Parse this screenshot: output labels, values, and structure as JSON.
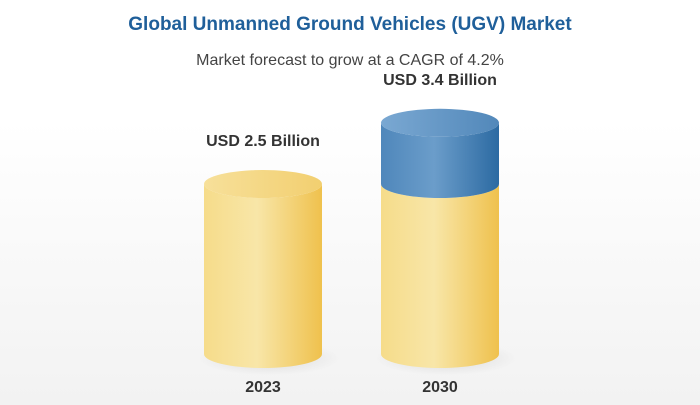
{
  "title": "Global Unmanned Ground Vehicles (UGV) Market",
  "subtitle": "Market forecast to grow at a CAGR of 4.2%",
  "colors": {
    "title": "#1f5f9a",
    "base_light": "#f8e6a6",
    "base_dark": "#f0c24f",
    "growth_light": "#8fb6d8",
    "growth_dark": "#2f6fa6"
  },
  "chart_data": {
    "type": "bar",
    "style": "3d-cylinder",
    "categories": [
      "2023",
      "2030"
    ],
    "values": [
      2.5,
      3.4
    ],
    "unit": "USD Billion",
    "data_labels": [
      "USD 2.5 Billion",
      "USD 3.4 Billion"
    ],
    "title": "Global Unmanned Ground Vehicles (UGV) Market",
    "subtitle": "Market forecast to grow at a CAGR of 4.2%",
    "xlabel": "",
    "ylabel": "",
    "cagr": "4.2%",
    "grid": false,
    "legend": "none"
  }
}
